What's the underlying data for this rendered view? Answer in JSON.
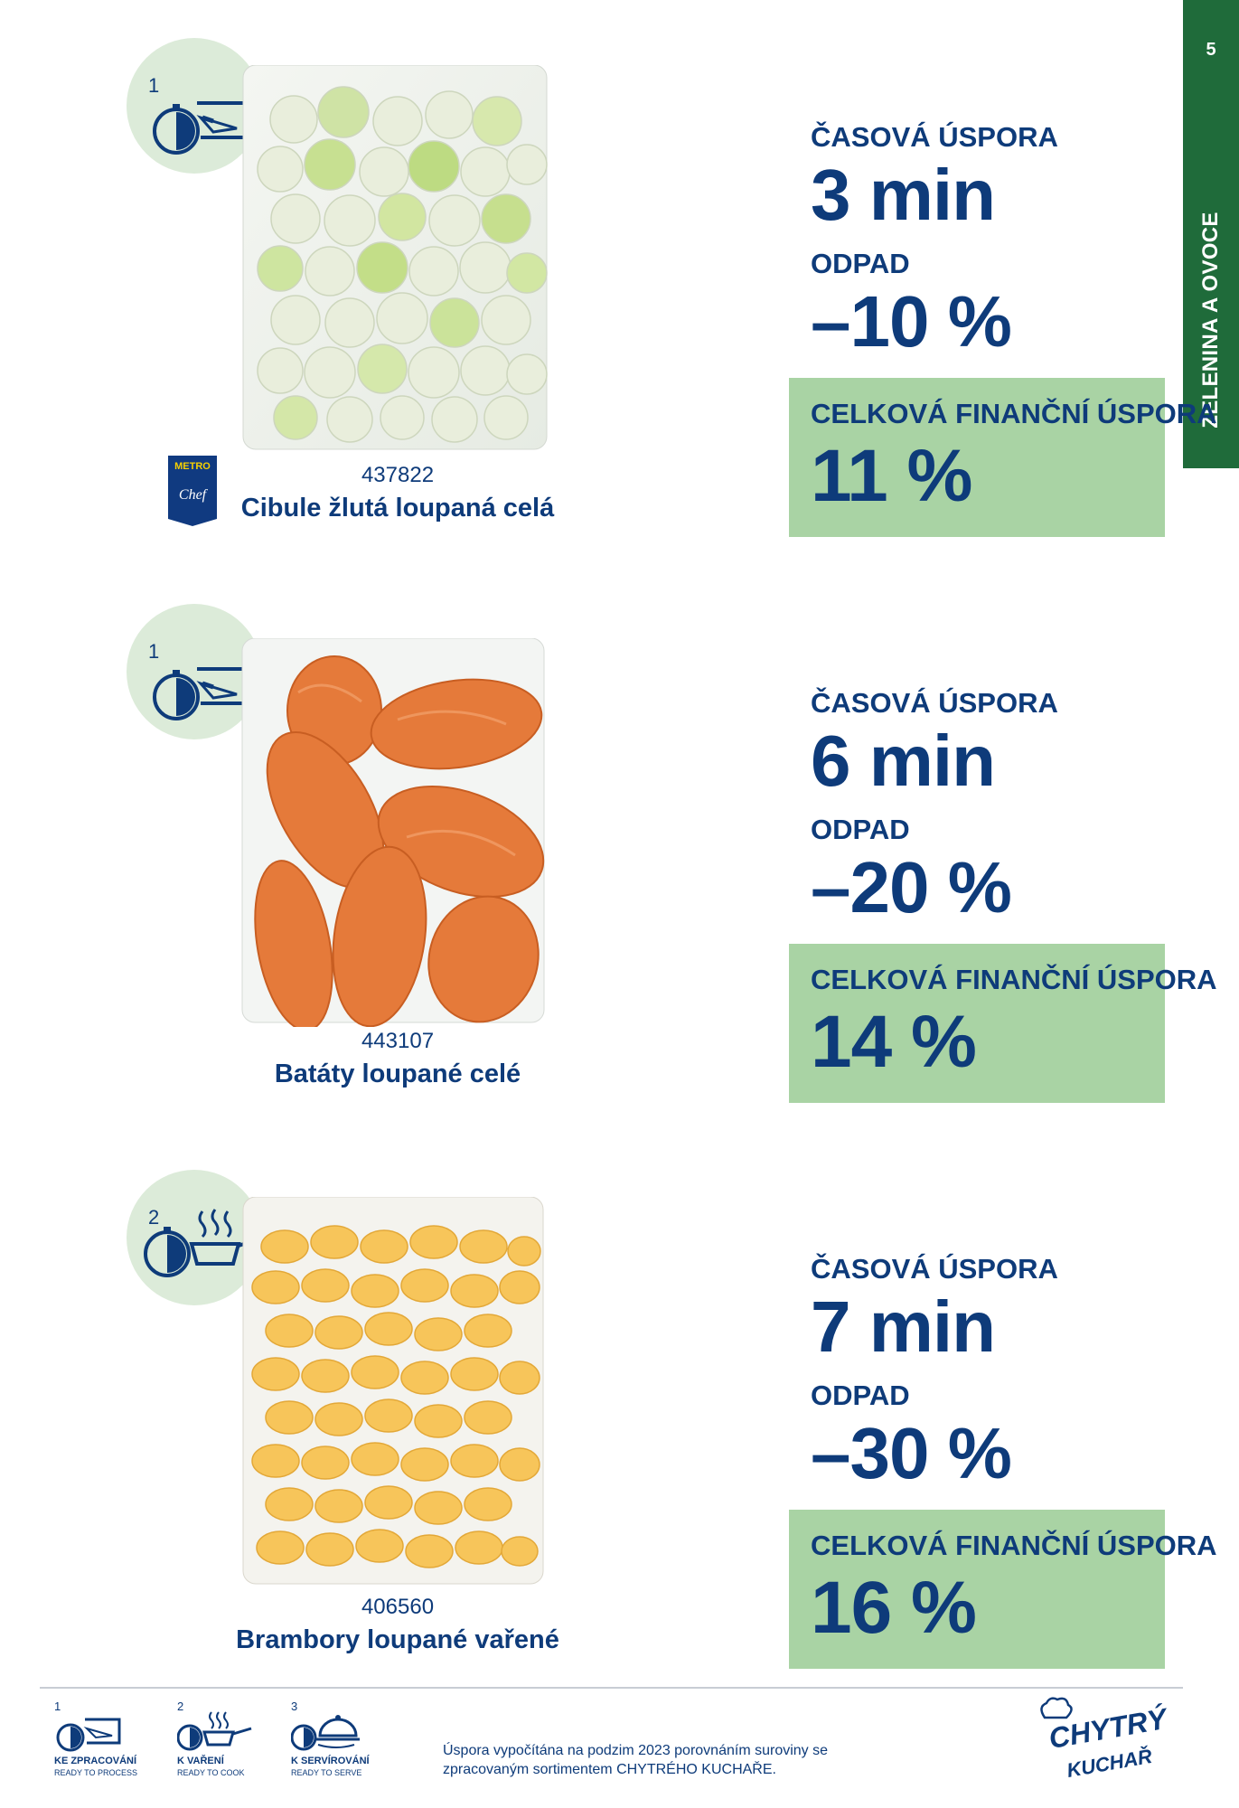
{
  "side_tab": {
    "page_number": "5",
    "category": "ZELENINA A OVOCE"
  },
  "products": [
    {
      "step": "1",
      "code": "437822",
      "name": "Cibule žlutá loupaná celá",
      "brand_logo": {
        "line1": "METRO",
        "line2": "Chef"
      },
      "time_label": "ČASOVÁ ÚSPORA",
      "time_value": "3 min",
      "waste_label": "ODPAD",
      "waste_value": "–10 %",
      "total_label": "CELKOVÁ FINANČNÍ ÚSPORA",
      "total_value": "11 %"
    },
    {
      "step": "1",
      "code": "443107",
      "name": "Batáty loupané celé",
      "time_label": "ČASOVÁ ÚSPORA",
      "time_value": "6 min",
      "waste_label": "ODPAD",
      "waste_value": "–20 %",
      "total_label": "CELKOVÁ FINANČNÍ ÚSPORA",
      "total_value": "14 %"
    },
    {
      "step": "2",
      "code": "406560",
      "name": "Brambory loupané vařené",
      "time_label": "ČASOVÁ ÚSPORA",
      "time_value": "7 min",
      "waste_label": "ODPAD",
      "waste_value": "–30 %",
      "total_label": "CELKOVÁ FINANČNÍ ÚSPORA",
      "total_value": "16 %"
    }
  ],
  "legend": [
    {
      "num": "1",
      "title": "KE ZPRACOVÁNÍ",
      "subtitle": "READY TO PROCESS",
      "icon": "knife-board-icon"
    },
    {
      "num": "2",
      "title": "K VAŘENÍ",
      "subtitle": "READY TO COOK",
      "icon": "pan-steam-icon"
    },
    {
      "num": "3",
      "title": "K SERVÍROVÁNÍ",
      "subtitle": "READY TO SERVE",
      "icon": "cloche-icon"
    }
  ],
  "footnote": "Úspora vypočítána na podzim 2023 porovnáním suroviny se zpracovaným sortimentem CHYTRÉHO KUCHAŘE.",
  "brand": {
    "line1": "CHYTRÝ",
    "line2": "KUCHAŘ"
  },
  "colors": {
    "navy": "#0e3b7a",
    "green_box": "#a9d3a4",
    "tab_green": "#1f6b3a",
    "icon_circle": "#dcebd9"
  }
}
